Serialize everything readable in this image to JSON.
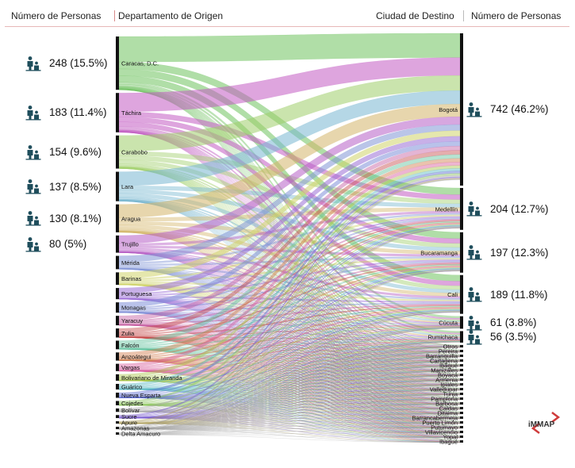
{
  "headers": {
    "left_count": "Número de Personas",
    "origin": "Departamento de Origen",
    "destination": "Ciudad de Destino",
    "right_count": "Número de Personas"
  },
  "logo_text": "iMMAP",
  "icon": "family-icon",
  "colors": {
    "accent": "#cf6b6b",
    "node": "#111111",
    "icon": "#1f4e5c"
  },
  "left_stats": [
    {
      "text": "248 (15.5%)"
    },
    {
      "text": "183 (11.4%)"
    },
    {
      "text": "154 (9.6%)"
    },
    {
      "text": "137 (8.5%)"
    },
    {
      "text": "130 (8.1%)"
    },
    {
      "text": "80 (5%)"
    }
  ],
  "right_stats": [
    {
      "text": "742 (46.2%)"
    },
    {
      "text": "204 (12.7%)"
    },
    {
      "text": "197 (12.3%)"
    },
    {
      "text": "189 (11.8%)"
    },
    {
      "text": "61 (3.8%)"
    },
    {
      "text": "56 (3.5%)"
    }
  ],
  "origins": [
    {
      "label": "Caracas, D.C.",
      "value": 248,
      "color": "#6fc25f"
    },
    {
      "label": "Táchira",
      "value": 183,
      "color": "#c25bc2"
    },
    {
      "label": "Carabobo",
      "value": 154,
      "color": "#9fce6a"
    },
    {
      "label": "Lara",
      "value": 137,
      "color": "#78b7d1"
    },
    {
      "label": "Aragua",
      "value": 130,
      "color": "#d4b56a"
    },
    {
      "label": "Trujillo",
      "value": 80,
      "color": "#b65ec6"
    },
    {
      "label": "Mérida",
      "value": 62,
      "color": "#8296d6"
    },
    {
      "label": "Barinas",
      "value": 58,
      "color": "#cfd36a"
    },
    {
      "label": "Portuguesa",
      "value": 52,
      "color": "#9b6fd6"
    },
    {
      "label": "Monagas",
      "value": 48,
      "color": "#7f8fd8"
    },
    {
      "label": "Yaracuy",
      "value": 44,
      "color": "#c45aa0"
    },
    {
      "label": "Zulia",
      "value": 42,
      "color": "#c54a4a"
    },
    {
      "label": "Falcón",
      "value": 40,
      "color": "#5fc09c"
    },
    {
      "label": "Anzoátegui",
      "value": 38,
      "color": "#d07a4a"
    },
    {
      "label": "Vargas",
      "value": 34,
      "color": "#d65a9c"
    },
    {
      "label": "Bolivariano de Miranda",
      "value": 30,
      "color": "#a9c44a"
    },
    {
      "label": "Guárico",
      "value": 26,
      "color": "#5ab8c4"
    },
    {
      "label": "Nueva Esparta",
      "value": 24,
      "color": "#5a6ad0"
    },
    {
      "label": "Cojedes",
      "value": 20,
      "color": "#8ac45a"
    },
    {
      "label": "Bolívar",
      "value": 16,
      "color": "#aaaaaa"
    },
    {
      "label": "Sucre",
      "value": 14,
      "color": "#7a5ad0"
    },
    {
      "label": "Apure",
      "value": 10,
      "color": "#b0a060"
    },
    {
      "label": "Amazonas",
      "value": 4,
      "color": "#999999"
    },
    {
      "label": "Delta Amacuro",
      "value": 3,
      "color": "#bbbbbb"
    }
  ],
  "destinations": [
    {
      "label": "Bogotá",
      "value": 742
    },
    {
      "label": "Medellín",
      "value": 204
    },
    {
      "label": "Bucaramanga",
      "value": 197
    },
    {
      "label": "Cali",
      "value": 189
    },
    {
      "label": "Cúcuta",
      "value": 61
    },
    {
      "label": "Rumichaca",
      "value": 56
    },
    {
      "label": "Otros",
      "value": 12
    },
    {
      "label": "Pereira",
      "value": 10
    },
    {
      "label": "Barranquilla",
      "value": 9
    },
    {
      "label": "Cartagena",
      "value": 8
    },
    {
      "label": "Ibagué",
      "value": 8
    },
    {
      "label": "Manizales",
      "value": 7
    },
    {
      "label": "Boyacá",
      "value": 6
    },
    {
      "label": "Armenia",
      "value": 6
    },
    {
      "label": "Ipiales",
      "value": 5
    },
    {
      "label": "Valledupar",
      "value": 5
    },
    {
      "label": "Tunja",
      "value": 5
    },
    {
      "label": "Pamplona",
      "value": 4
    },
    {
      "label": "Barbosa",
      "value": 4
    },
    {
      "label": "Caldas",
      "value": 3
    },
    {
      "label": "Ditaima",
      "value": 3
    },
    {
      "label": "Barrancabermeja",
      "value": 3
    },
    {
      "label": "Puerto Limón",
      "value": 2
    },
    {
      "label": "Putumayo",
      "value": 2
    },
    {
      "label": "Villavicencio",
      "value": 2
    },
    {
      "label": "Yopal",
      "value": 2
    },
    {
      "label": "Ibagué",
      "value": 1
    }
  ]
}
